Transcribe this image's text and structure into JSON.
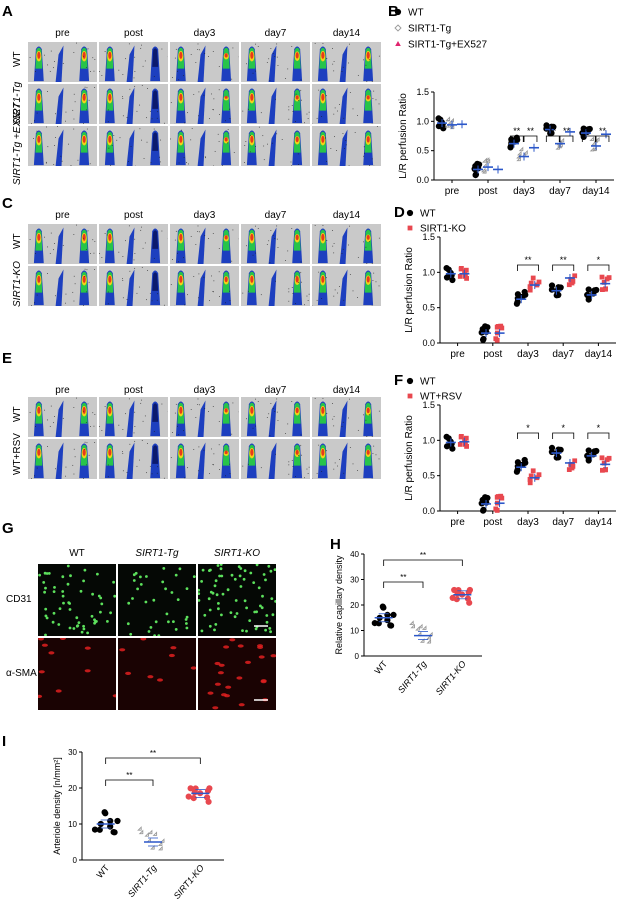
{
  "panels": {
    "A": {
      "letter": "A",
      "columns": [
        "pre",
        "post",
        "day3",
        "day7",
        "day14"
      ],
      "rows": [
        "WT",
        "SIRT1-Tg",
        "SIRT1-Tg\n+EX527"
      ]
    },
    "B": {
      "letter": "B"
    },
    "C": {
      "letter": "C",
      "columns": [
        "pre",
        "post",
        "day3",
        "day7",
        "day14"
      ],
      "rows": [
        "WT",
        "SIRT1-KO"
      ]
    },
    "D": {
      "letter": "D"
    },
    "E": {
      "letter": "E",
      "columns": [
        "pre",
        "post",
        "day3",
        "day7",
        "day14"
      ],
      "rows": [
        "WT",
        "WT+RSV"
      ]
    },
    "F": {
      "letter": "F"
    },
    "G": {
      "letter": "G",
      "columns": [
        "WT",
        "SIRT1-Tg",
        "SIRT1-KO"
      ],
      "rows": [
        "CD31",
        "α-SMA"
      ]
    },
    "H": {
      "letter": "H"
    },
    "I": {
      "letter": "I"
    }
  },
  "chart_data": [
    {
      "id": "B",
      "type": "scatter",
      "ylabel": "L/R perfusion Ratio",
      "ylim": [
        0.0,
        1.5
      ],
      "yticks": [
        "0.0",
        "0.5",
        "1.0",
        "1.5"
      ],
      "categories": [
        "pre",
        "post",
        "day3",
        "day7",
        "day14"
      ],
      "series": [
        {
          "name": "WT",
          "color": "#000000",
          "marker": "circle",
          "means": [
            0.97,
            0.18,
            0.62,
            0.86,
            0.8
          ]
        },
        {
          "name": "SIRT1-Tg",
          "color": "#999999",
          "marker": "diamond",
          "means": [
            0.94,
            0.22,
            0.4,
            0.62,
            0.58
          ]
        },
        {
          "name": "SIRT1-Tg+EX527",
          "color": "#e0246e",
          "marker": "triangle",
          "means": [
            0.95,
            0.18,
            0.55,
            0.82,
            0.78
          ]
        }
      ],
      "significance": [
        {
          "category": "day3",
          "labels": [
            "**",
            "**"
          ]
        },
        {
          "category": "day7",
          "labels": [
            "**",
            "**"
          ]
        },
        {
          "category": "day14",
          "labels": [
            "**",
            "**"
          ]
        }
      ]
    },
    {
      "id": "D",
      "type": "scatter",
      "ylabel": "L/R perfusion Ratio",
      "ylim": [
        0.0,
        1.5
      ],
      "yticks": [
        "0.0",
        "0.5",
        "1.0",
        "1.5"
      ],
      "categories": [
        "pre",
        "post",
        "day3",
        "day7",
        "day14"
      ],
      "series": [
        {
          "name": "WT",
          "color": "#000000",
          "marker": "circle",
          "means": [
            0.98,
            0.14,
            0.62,
            0.74,
            0.68
          ]
        },
        {
          "name": "SIRT1-KO",
          "color": "#e8484f",
          "marker": "square",
          "means": [
            0.98,
            0.14,
            0.82,
            0.92,
            0.84
          ]
        }
      ],
      "significance": [
        {
          "category": "day3",
          "labels": [
            "**"
          ]
        },
        {
          "category": "day7",
          "labels": [
            "**"
          ]
        },
        {
          "category": "day14",
          "labels": [
            "*"
          ]
        }
      ]
    },
    {
      "id": "F",
      "type": "scatter",
      "ylabel": "L/R perfusion Ratio",
      "ylim": [
        0.0,
        1.5
      ],
      "yticks": [
        "0.0",
        "0.5",
        "1.0",
        "1.5"
      ],
      "categories": [
        "pre",
        "post",
        "day3",
        "day7",
        "day14"
      ],
      "series": [
        {
          "name": "WT",
          "color": "#000000",
          "marker": "circle",
          "means": [
            0.97,
            0.1,
            0.62,
            0.82,
            0.78
          ]
        },
        {
          "name": "WT+RSV",
          "color": "#e8484f",
          "marker": "square",
          "means": [
            0.98,
            0.11,
            0.47,
            0.68,
            0.66
          ]
        }
      ],
      "significance": [
        {
          "category": "day3",
          "labels": [
            "*"
          ]
        },
        {
          "category": "day7",
          "labels": [
            "*"
          ]
        },
        {
          "category": "day14",
          "labels": [
            "*"
          ]
        }
      ]
    },
    {
      "id": "H",
      "type": "scatter",
      "ylabel": "Relative capillary density",
      "ylim": [
        0,
        40
      ],
      "yticks": [
        "0",
        "10",
        "20",
        "30",
        "40"
      ],
      "categories": [
        "WT",
        "SIRT1-Tg",
        "SIRT1-KO"
      ],
      "series": [
        {
          "name": "WT",
          "color": "#000000",
          "marker": "circle",
          "means": [
            15
          ]
        },
        {
          "name": "SIRT1-Tg",
          "color": "#999999",
          "marker": "diamond",
          "means": [
            8
          ]
        },
        {
          "name": "SIRT1-KO",
          "color": "#e8484f",
          "marker": "circle",
          "means": [
            24
          ]
        }
      ],
      "significance": [
        {
          "from": "WT",
          "to": "SIRT1-Tg",
          "label": "**"
        },
        {
          "from": "WT",
          "to": "SIRT1-KO",
          "label": "**"
        }
      ]
    },
    {
      "id": "I",
      "type": "scatter",
      "ylabel": "Arteriole density [n/mm²]",
      "ylim": [
        0,
        30
      ],
      "yticks": [
        "0",
        "10",
        "20",
        "30"
      ],
      "categories": [
        "WT",
        "SIRT1-Tg",
        "SIRT1-KO"
      ],
      "series": [
        {
          "name": "WT",
          "color": "#000000",
          "marker": "circle",
          "means": [
            10
          ]
        },
        {
          "name": "SIRT1-Tg",
          "color": "#999999",
          "marker": "diamond",
          "means": [
            5
          ]
        },
        {
          "name": "SIRT1-KO",
          "color": "#e8484f",
          "marker": "circle",
          "means": [
            18.5
          ]
        }
      ],
      "significance": [
        {
          "from": "WT",
          "to": "SIRT1-Tg",
          "label": "**"
        },
        {
          "from": "WT",
          "to": "SIRT1-KO",
          "label": "**"
        }
      ]
    }
  ]
}
